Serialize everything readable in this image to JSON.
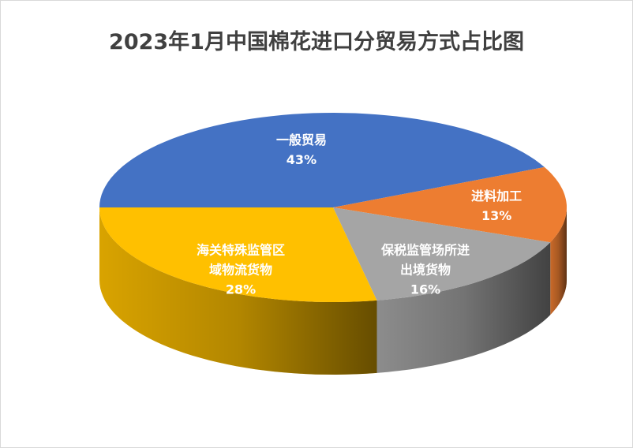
{
  "chart_data": {
    "type": "pie",
    "title": "2023年1月中国棉花进口分贸易方式占比图",
    "categories": [
      "一般贸易",
      "进料加工",
      "保税监管场所进出境货物",
      "海关特殊监管区域物流货物"
    ],
    "values": [
      43,
      13,
      16,
      28
    ],
    "value_labels": [
      "43%",
      "13%",
      "16%",
      "28%"
    ],
    "colors": [
      "#4472c4",
      "#ed7d31",
      "#a5a5a5",
      "#ffc000"
    ]
  }
}
